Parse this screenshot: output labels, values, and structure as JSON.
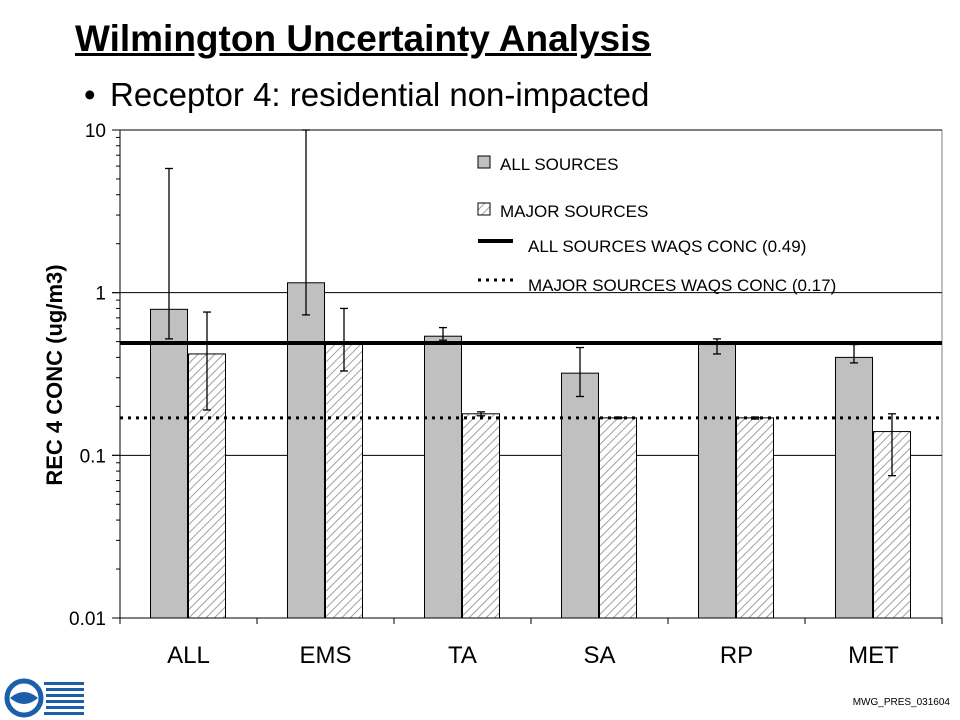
{
  "page": {
    "title": "Wilmington Uncertainty Analysis",
    "bullet": "Receptor 4:  residential non-impacted",
    "footer_code": "MWG_PRES_031604"
  },
  "colors": {
    "all_bar": "#c0c0c0",
    "major_hatch": "#a0a0a0",
    "axis": "#000000",
    "logo_blue": "#1a5fa8"
  },
  "chart_data": {
    "type": "bar",
    "scale": "log",
    "ylabel": "REC 4 CONC (ug/m3)",
    "ylim": [
      0.01,
      10
    ],
    "ytick_labels": [
      "0.01",
      "0.1",
      "1",
      "10"
    ],
    "ytick_values": [
      0.01,
      0.1,
      1,
      10
    ],
    "grid": "horizontal major",
    "legend_position": "top-right",
    "categories": [
      "ALL",
      "EMS",
      "TA",
      "SA",
      "RP",
      "MET"
    ],
    "series": [
      {
        "name": "ALL SOURCES",
        "style": "solid-gray",
        "values": [
          0.79,
          1.15,
          0.54,
          0.32,
          0.48,
          0.4
        ],
        "err_low": [
          0.52,
          0.73,
          0.51,
          0.23,
          0.42,
          0.37
        ],
        "err_high": [
          5.8,
          10.5,
          0.61,
          0.46,
          0.52,
          0.48
        ]
      },
      {
        "name": "MAJOR SOURCES",
        "style": "hatched",
        "values": [
          0.42,
          0.5,
          0.18,
          0.17,
          0.17,
          0.14
        ],
        "err_low": [
          0.19,
          0.33,
          0.175,
          0.168,
          0.167,
          0.075
        ],
        "err_high": [
          0.76,
          0.8,
          0.185,
          0.172,
          0.172,
          0.18
        ]
      }
    ],
    "reference_lines": [
      {
        "name": "ALL SOURCES WAQS CONC (0.49)",
        "value": 0.49,
        "style": "solid"
      },
      {
        "name": "MAJOR SOURCES WAQS CONC (0.17)",
        "value": 0.17,
        "style": "dotted"
      }
    ]
  }
}
